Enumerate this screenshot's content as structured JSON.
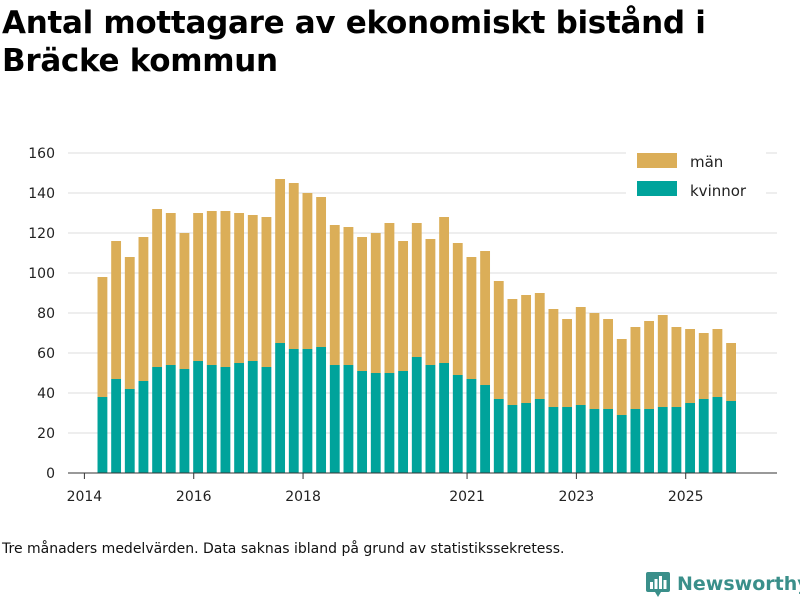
{
  "title": "Antal mottagare av ekonomiskt bistånd i Bräcke kommun",
  "footnote": "Tre månaders medelvärden. Data saknas ibland på grund av statistikssekretess.",
  "brand": {
    "name": "Newsworthy"
  },
  "colors": {
    "man": "#dbae58",
    "kvinnor": "#00a39b",
    "grid": "#dddddd",
    "axis": "#333333"
  },
  "chart_data": {
    "type": "bar",
    "stacked": true,
    "title": "Antal mottagare av ekonomiskt bistånd i Bräcke kommun",
    "xlabel": "",
    "ylabel": "",
    "ylim": [
      0,
      160
    ],
    "yticks": [
      0,
      20,
      40,
      60,
      80,
      100,
      120,
      140,
      160
    ],
    "xlim": [
      2013.7,
      2026.67
    ],
    "xticks": [
      {
        "value": 2014.0,
        "label": "2014"
      },
      {
        "value": 2016.0,
        "label": "2016"
      },
      {
        "value": 2018.0,
        "label": "2018"
      },
      {
        "value": 2021.0,
        "label": "2021"
      },
      {
        "value": 2023.0,
        "label": "2023"
      },
      {
        "value": 2025.0,
        "label": "2025"
      }
    ],
    "legend": {
      "position": "top-right",
      "entries": [
        "män",
        "kvinnor"
      ]
    },
    "bar_width_years": 0.18,
    "x": [
      2014.33,
      2014.58,
      2014.83,
      2015.08,
      2015.33,
      2015.58,
      2015.83,
      2016.08,
      2016.33,
      2016.58,
      2016.83,
      2017.08,
      2017.33,
      2017.58,
      2017.83,
      2018.08,
      2018.33,
      2018.58,
      2018.83,
      2019.08,
      2019.33,
      2019.58,
      2019.83,
      2020.08,
      2020.33,
      2020.58,
      2020.83,
      2021.08,
      2021.33,
      2021.58,
      2021.83,
      2022.08,
      2022.33,
      2022.58,
      2022.83,
      2023.08,
      2023.33,
      2023.58,
      2023.83,
      2024.08,
      2024.33,
      2024.58,
      2024.83,
      2025.08,
      2025.33,
      2025.58,
      2025.83
    ],
    "series": [
      {
        "name": "kvinnor",
        "values": [
          38,
          47,
          42,
          46,
          53,
          54,
          52,
          56,
          54,
          53,
          55,
          56,
          53,
          65,
          62,
          62,
          63,
          54,
          54,
          51,
          50,
          50,
          51,
          58,
          54,
          55,
          49,
          47,
          44,
          37,
          34,
          35,
          37,
          33,
          33,
          34,
          32,
          32,
          29,
          32,
          32,
          33,
          33,
          35,
          37,
          38,
          36
        ]
      },
      {
        "name": "män",
        "values": [
          60,
          69,
          66,
          72,
          79,
          76,
          68,
          74,
          77,
          78,
          75,
          73,
          75,
          82,
          83,
          78,
          75,
          70,
          69,
          67,
          70,
          75,
          65,
          67,
          63,
          73,
          66,
          61,
          67,
          59,
          53,
          54,
          53,
          49,
          44,
          49,
          48,
          45,
          38,
          41,
          44,
          46,
          40,
          37,
          33,
          34,
          29
        ]
      }
    ]
  }
}
